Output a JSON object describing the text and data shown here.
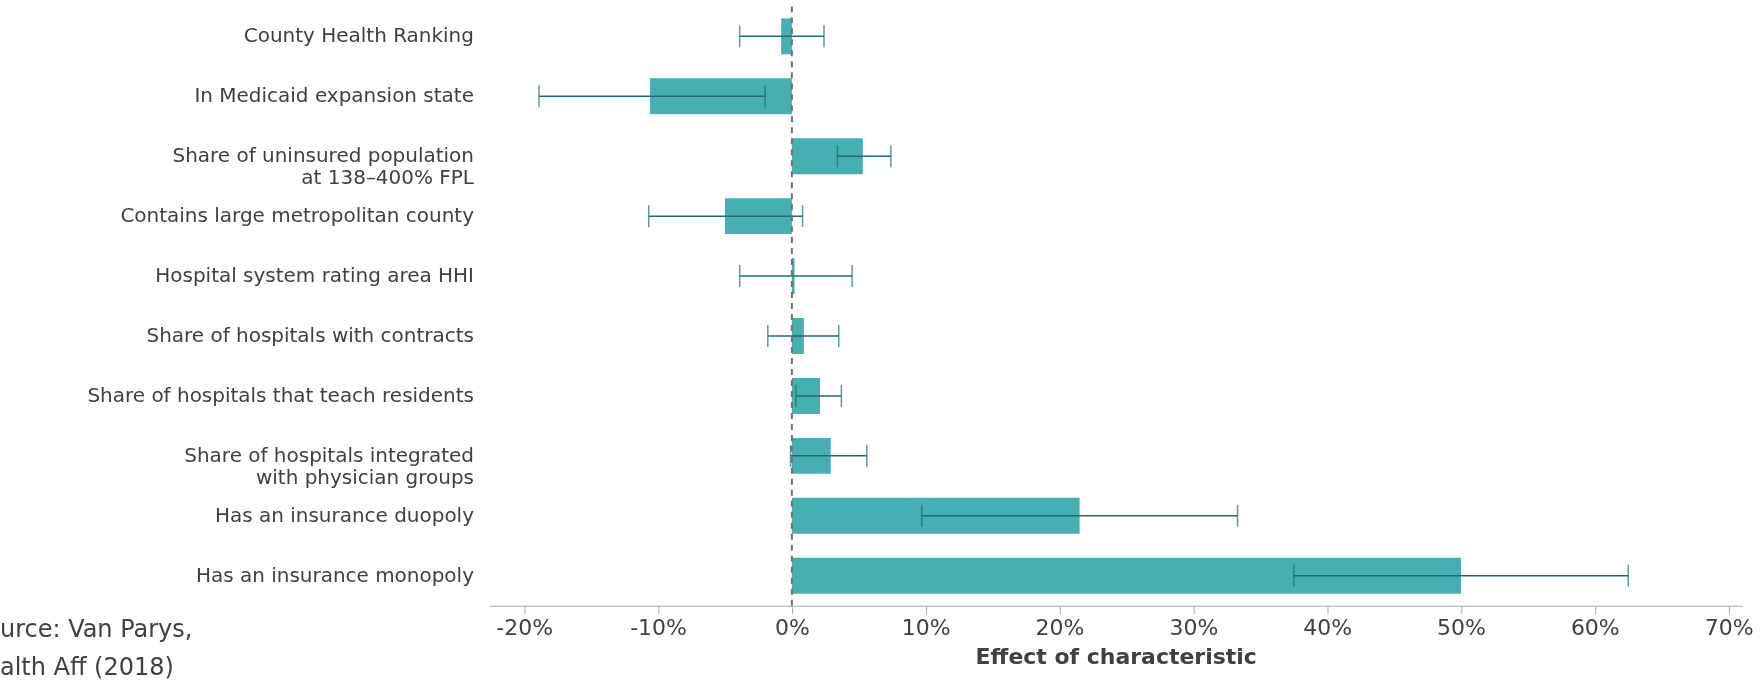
{
  "chart_data": {
    "type": "bar",
    "orientation": "horizontal",
    "xlabel": "Effect of characteristic",
    "categories": [
      "County Health Ranking",
      "In Medicaid expansion state",
      "Share of uninsured population\nat 138–400% FPL",
      "Contains large metropolitan county",
      "Hospital system rating area HHI",
      "Share of hospitals with contracts",
      "Share of hospitals that teach residents",
      "Share of hospitals integrated\nwith physician groups",
      "Has an insurance duopoly",
      "Has an insurance monopoly"
    ],
    "values": [
      -0.8,
      -10.6,
      5.3,
      -5.0,
      0.2,
      0.9,
      2.1,
      2.9,
      21.5,
      50.0
    ],
    "errors": [
      [
        -3.9,
        2.4
      ],
      [
        -18.9,
        -2.0
      ],
      [
        3.4,
        7.4
      ],
      [
        -10.7,
        0.8
      ],
      [
        -3.9,
        4.5
      ],
      [
        -1.8,
        3.5
      ],
      [
        0.3,
        3.7
      ],
      [
        -0.1,
        5.6
      ],
      [
        9.7,
        33.3
      ],
      [
        37.5,
        62.5
      ]
    ],
    "color": "#45afb1",
    "xlim": [
      -22.6,
      71
    ],
    "xticks": [
      {
        "value": -20,
        "label": "-20%"
      },
      {
        "value": -10,
        "label": "-10%"
      },
      {
        "value": 0,
        "label": "0%"
      },
      {
        "value": 10,
        "label": "10%"
      },
      {
        "value": 20,
        "label": "20%"
      },
      {
        "value": 30,
        "label": "30%"
      },
      {
        "value": 40,
        "label": "40%"
      },
      {
        "value": 50,
        "label": "50%"
      },
      {
        "value": 60,
        "label": "60%"
      },
      {
        "value": 70,
        "label": "70%"
      }
    ],
    "ref_lines": [
      {
        "axis": "x",
        "value": 0,
        "color": "#707070",
        "line_style": "dashed"
      }
    ],
    "grid": false,
    "annotations": [
      "urce: Van Parys,\nalth Aff (2018)"
    ]
  }
}
